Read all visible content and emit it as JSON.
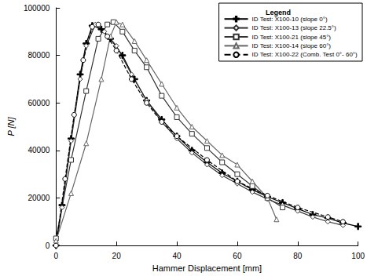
{
  "chart_data": {
    "type": "line",
    "x_label": "Hammer Displacement [mm]",
    "y_label": "P [N]",
    "legend_title": "Legend",
    "legend": "upper right",
    "grid": false,
    "xlim": [
      0,
      100
    ],
    "xticks": [
      0,
      20,
      40,
      60,
      80,
      100
    ],
    "ylim": [
      0,
      100000
    ],
    "yticks": [
      0,
      20000,
      40000,
      60000,
      80000,
      100000
    ],
    "series": [
      {
        "name": "ID Test: X100-10 (slope 0°)",
        "color": "#000000",
        "marker": "plus",
        "line_style": "solid",
        "x": [
          0,
          2,
          5,
          8,
          10,
          12,
          15,
          18,
          22,
          26,
          30,
          35,
          40,
          45,
          50,
          55,
          60,
          65,
          70,
          75,
          80,
          85,
          90,
          95,
          100
        ],
        "values": [
          0,
          17000,
          45000,
          72000,
          85000,
          92500,
          91000,
          87000,
          80000,
          70000,
          61000,
          53000,
          46000,
          40000,
          35000,
          30500,
          27000,
          23500,
          20500,
          18000,
          15500,
          13000,
          11500,
          9500,
          8000
        ]
      },
      {
        "name": "ID Test: X100-13 (slope 22.5°)",
        "color": "#333333",
        "marker": "diamond",
        "line_style": "solid",
        "x": [
          0,
          2,
          5,
          8,
          10,
          13,
          16,
          20,
          25,
          30,
          35,
          40,
          45,
          50,
          55,
          60,
          65,
          70,
          75,
          80,
          85,
          90,
          95
        ],
        "values": [
          0,
          16000,
          44000,
          70000,
          84000,
          93000,
          90000,
          84000,
          72000,
          61000,
          52000,
          45000,
          39000,
          34000,
          29500,
          26000,
          22500,
          19500,
          17000,
          14500,
          12000,
          10000,
          8500
        ]
      },
      {
        "name": "ID Test: X100-21 (slope 45°)",
        "color": "#333333",
        "marker": "square",
        "line_style": "solid",
        "x": [
          0,
          5,
          10,
          14,
          17,
          19,
          22,
          26,
          30,
          35,
          40,
          45,
          50,
          55,
          60,
          65,
          70,
          75
        ],
        "values": [
          3000,
          36000,
          65000,
          87000,
          93000,
          94000,
          90000,
          82000,
          75000,
          63000,
          54000,
          47000,
          41000,
          35000,
          30000,
          25000,
          20000,
          16000
        ]
      },
      {
        "name": "ID Test: X100-14 (slope 60°)",
        "color": "#666666",
        "marker": "triangle",
        "line_style": "solid",
        "x": [
          0,
          5,
          10,
          15,
          18,
          20,
          22,
          26,
          30,
          35,
          40,
          45,
          50,
          55,
          60,
          65,
          70,
          73
        ],
        "values": [
          2000,
          22000,
          43000,
          70000,
          88000,
          94000,
          93000,
          86000,
          78000,
          68000,
          58000,
          50000,
          44000,
          38000,
          34000,
          27000,
          20000,
          11000
        ]
      },
      {
        "name": "ID Test: X100-22 (Comb. Test 0°- 60°)",
        "color": "#000000",
        "marker": "circle",
        "line_style": "dashed",
        "x": [
          0,
          3,
          6,
          9,
          12,
          14,
          17,
          20,
          25,
          30,
          35,
          40,
          50,
          60,
          70,
          80,
          90,
          95
        ],
        "values": [
          0,
          28000,
          55000,
          78000,
          92000,
          93000,
          88000,
          82000,
          70000,
          60000,
          52000,
          46000,
          36000,
          27000,
          21000,
          16000,
          12000,
          10000
        ]
      }
    ]
  }
}
